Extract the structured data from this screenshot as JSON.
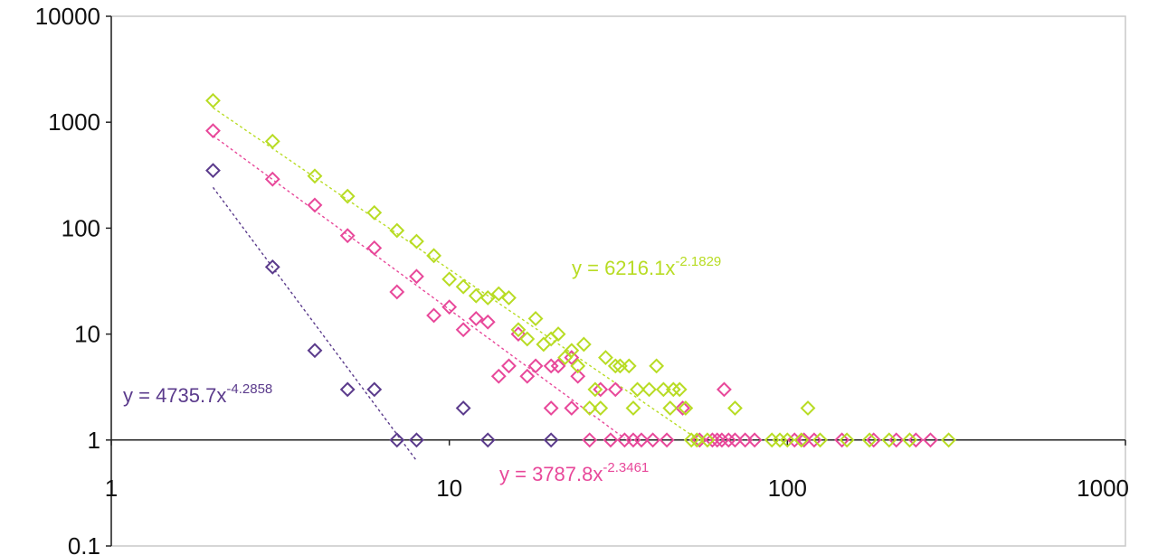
{
  "chart_data": {
    "type": "scatter",
    "title": "",
    "xlabel": "",
    "ylabel": "",
    "x_scale": "log",
    "y_scale": "log",
    "xlim": [
      1,
      1000
    ],
    "ylim": [
      0.1,
      10000
    ],
    "x_ticks": [
      {
        "value": 1,
        "label": "1"
      },
      {
        "value": 10,
        "label": "10"
      },
      {
        "value": 100,
        "label": "100"
      },
      {
        "value": 1000,
        "label": "1000"
      }
    ],
    "y_ticks": [
      {
        "value": 0.1,
        "label": "0.1"
      },
      {
        "value": 1,
        "label": "1"
      },
      {
        "value": 10,
        "label": "10"
      },
      {
        "value": 100,
        "label": "100"
      },
      {
        "value": 1000,
        "label": "1000"
      },
      {
        "value": 10000,
        "label": "10000"
      }
    ],
    "grid": false,
    "legend": "none",
    "series": [
      {
        "color": "#5b3b8c",
        "marker": "diamond",
        "points": [
          [
            2,
            350
          ],
          [
            3,
            43
          ],
          [
            4,
            7
          ],
          [
            5,
            3
          ],
          [
            6,
            3
          ],
          [
            7,
            1
          ],
          [
            8,
            1
          ],
          [
            11,
            2
          ],
          [
            13,
            1
          ],
          [
            20,
            1
          ]
        ],
        "trendline": {
          "a": 4735.7,
          "b": -4.2858,
          "x_range": [
            2,
            8
          ],
          "equation": {
            "prefix": "y = 4735.7x",
            "exponent": "-4.2858"
          }
        }
      },
      {
        "color": "#e8489a",
        "marker": "diamond",
        "points": [
          [
            2,
            830
          ],
          [
            3,
            290
          ],
          [
            4,
            165
          ],
          [
            5,
            85
          ],
          [
            6,
            65
          ],
          [
            7,
            25
          ],
          [
            8,
            35
          ],
          [
            9,
            15
          ],
          [
            10,
            18
          ],
          [
            11,
            11
          ],
          [
            12,
            14
          ],
          [
            13,
            13
          ],
          [
            14,
            4
          ],
          [
            15,
            5
          ],
          [
            16,
            10
          ],
          [
            17,
            4
          ],
          [
            18,
            5
          ],
          [
            20,
            2
          ],
          [
            20,
            5
          ],
          [
            21,
            5
          ],
          [
            23,
            2
          ],
          [
            23,
            6
          ],
          [
            24,
            4
          ],
          [
            26,
            1
          ],
          [
            28,
            3
          ],
          [
            30,
            1
          ],
          [
            31,
            3
          ],
          [
            33,
            1
          ],
          [
            35,
            1
          ],
          [
            37,
            1
          ],
          [
            40,
            1
          ],
          [
            44,
            1
          ],
          [
            49,
            2
          ],
          [
            55,
            1
          ],
          [
            60,
            1
          ],
          [
            62,
            1
          ],
          [
            64,
            1
          ],
          [
            65,
            3
          ],
          [
            67,
            1
          ],
          [
            70,
            1
          ],
          [
            75,
            1
          ],
          [
            80,
            1
          ],
          [
            105,
            1
          ],
          [
            112,
            1
          ],
          [
            120,
            1
          ],
          [
            145,
            1
          ],
          [
            180,
            1
          ],
          [
            210,
            1
          ],
          [
            240,
            1
          ],
          [
            265,
            1
          ]
        ],
        "trendline": {
          "a": 3787.8,
          "b": -2.3461,
          "x_range": [
            2,
            33
          ],
          "equation": {
            "prefix": "y = 3787.8x",
            "exponent": "-2.3461"
          }
        }
      },
      {
        "color": "#b8dc24",
        "marker": "diamond",
        "points": [
          [
            2,
            1600
          ],
          [
            3,
            660
          ],
          [
            4,
            310
          ],
          [
            5,
            200
          ],
          [
            6,
            140
          ],
          [
            7,
            95
          ],
          [
            8,
            75
          ],
          [
            9,
            55
          ],
          [
            10,
            33
          ],
          [
            11,
            28
          ],
          [
            12,
            23
          ],
          [
            13,
            22
          ],
          [
            14,
            24
          ],
          [
            15,
            22
          ],
          [
            16,
            11
          ],
          [
            17,
            9
          ],
          [
            18,
            14
          ],
          [
            19,
            8
          ],
          [
            20,
            9
          ],
          [
            21,
            10
          ],
          [
            22,
            6
          ],
          [
            23,
            7
          ],
          [
            24,
            5
          ],
          [
            25,
            8
          ],
          [
            26,
            2
          ],
          [
            27,
            3
          ],
          [
            28,
            2
          ],
          [
            29,
            6
          ],
          [
            31,
            5
          ],
          [
            32,
            5
          ],
          [
            34,
            5
          ],
          [
            35,
            2
          ],
          [
            36,
            3
          ],
          [
            39,
            3
          ],
          [
            41,
            5
          ],
          [
            43,
            3
          ],
          [
            45,
            2
          ],
          [
            46,
            3
          ],
          [
            48,
            3
          ],
          [
            50,
            2
          ],
          [
            52,
            1
          ],
          [
            54,
            1
          ],
          [
            58,
            1
          ],
          [
            70,
            2
          ],
          [
            90,
            1
          ],
          [
            95,
            1
          ],
          [
            100,
            1
          ],
          [
            110,
            1
          ],
          [
            115,
            2
          ],
          [
            125,
            1
          ],
          [
            150,
            1
          ],
          [
            175,
            1
          ],
          [
            200,
            1
          ],
          [
            230,
            1
          ],
          [
            300,
            1
          ]
        ],
        "trendline": {
          "a": 6216.1,
          "b": -2.1829,
          "x_range": [
            2,
            55
          ],
          "equation": {
            "prefix": "y = 6216.1x",
            "exponent": "-2.1829"
          }
        }
      }
    ]
  }
}
